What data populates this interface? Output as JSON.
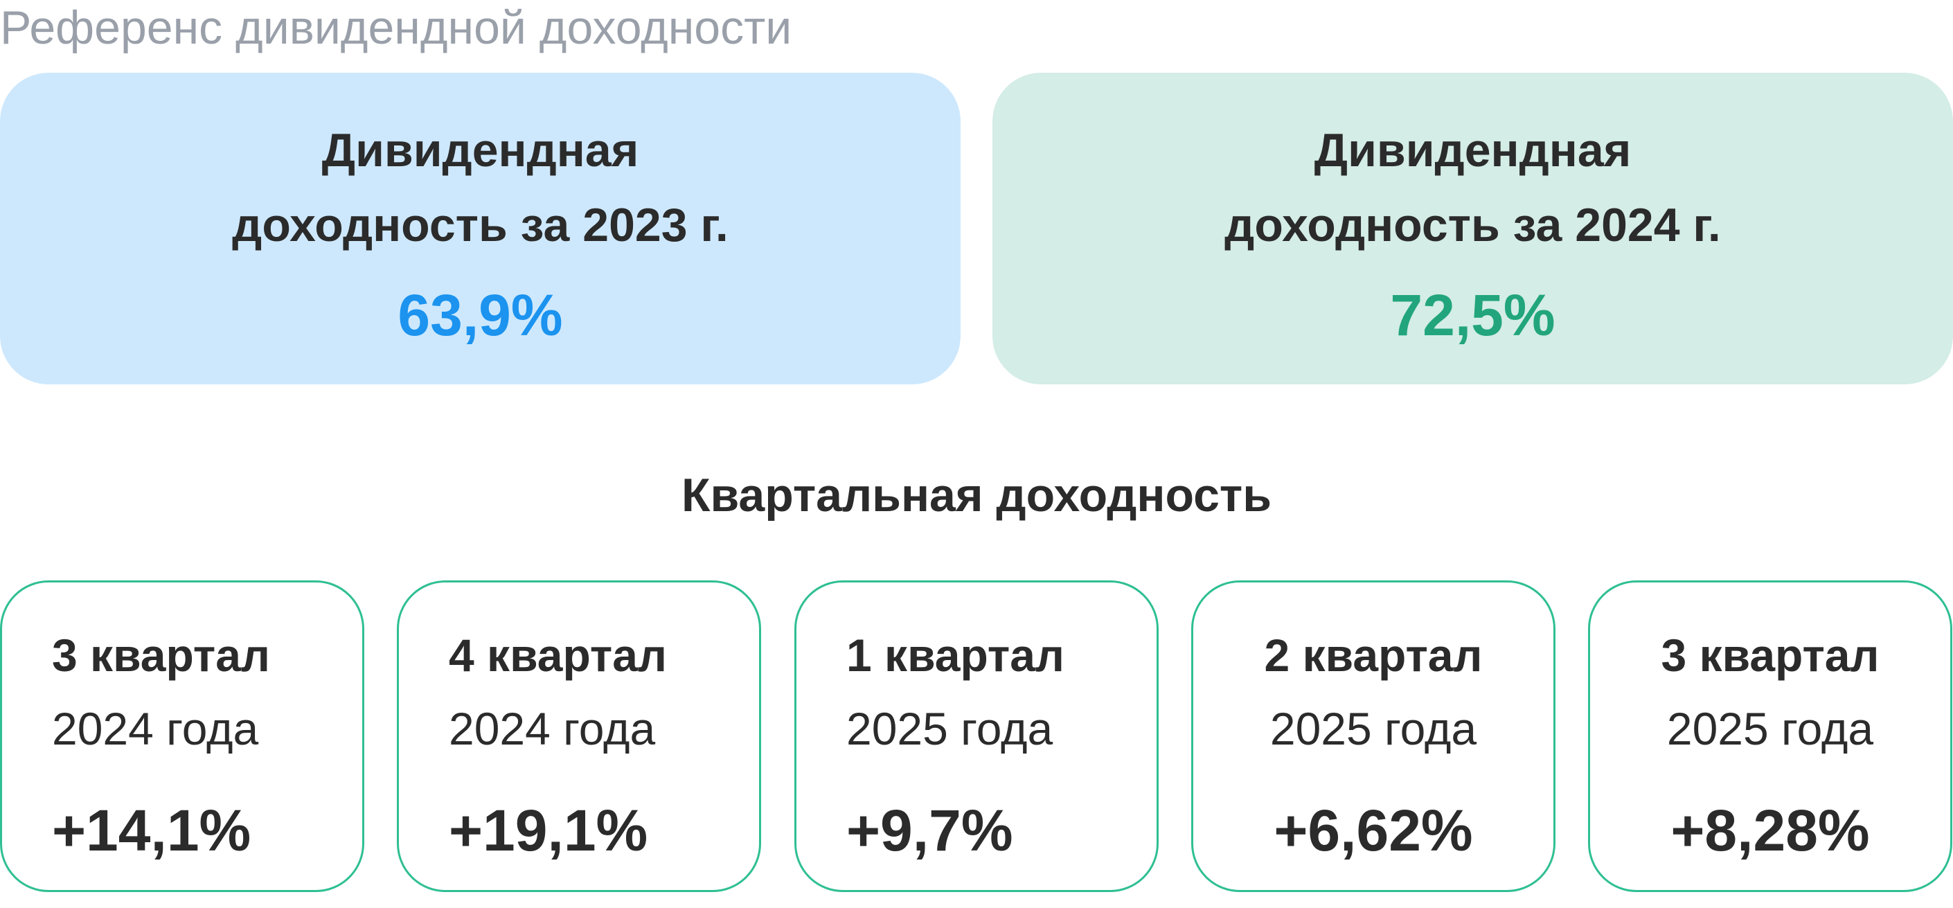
{
  "header": {
    "title": "Референс дивидендной доходности"
  },
  "annual": [
    {
      "title_line1": "Дивидендная",
      "title_line2": "доходность за 2023 г.",
      "value": "63,9%",
      "accent_color": "#1b93ef",
      "background_color": "#cde8fd"
    },
    {
      "title_line1": "Дивидендная",
      "title_line2": "доходность за 2024 г.",
      "value": "72,5%",
      "accent_color": "#22a57c",
      "background_color": "#d4ede6"
    }
  ],
  "quarterly": {
    "title": "Квартальная доходность",
    "border_color": "#2fbf93",
    "items": [
      {
        "quarter": "3 квартал",
        "year": "2024 года",
        "value": "+14,1%"
      },
      {
        "quarter": "4 квартал",
        "year": "2024 года",
        "value": "+19,1%"
      },
      {
        "quarter": "1 квартал",
        "year": "2025 года",
        "value": "+9,7%"
      },
      {
        "quarter": "2 квартал",
        "year": "2025 года",
        "value": "+6,62%"
      },
      {
        "quarter": "3 квартал",
        "year": "2025 года",
        "value": "+8,28%"
      }
    ]
  }
}
